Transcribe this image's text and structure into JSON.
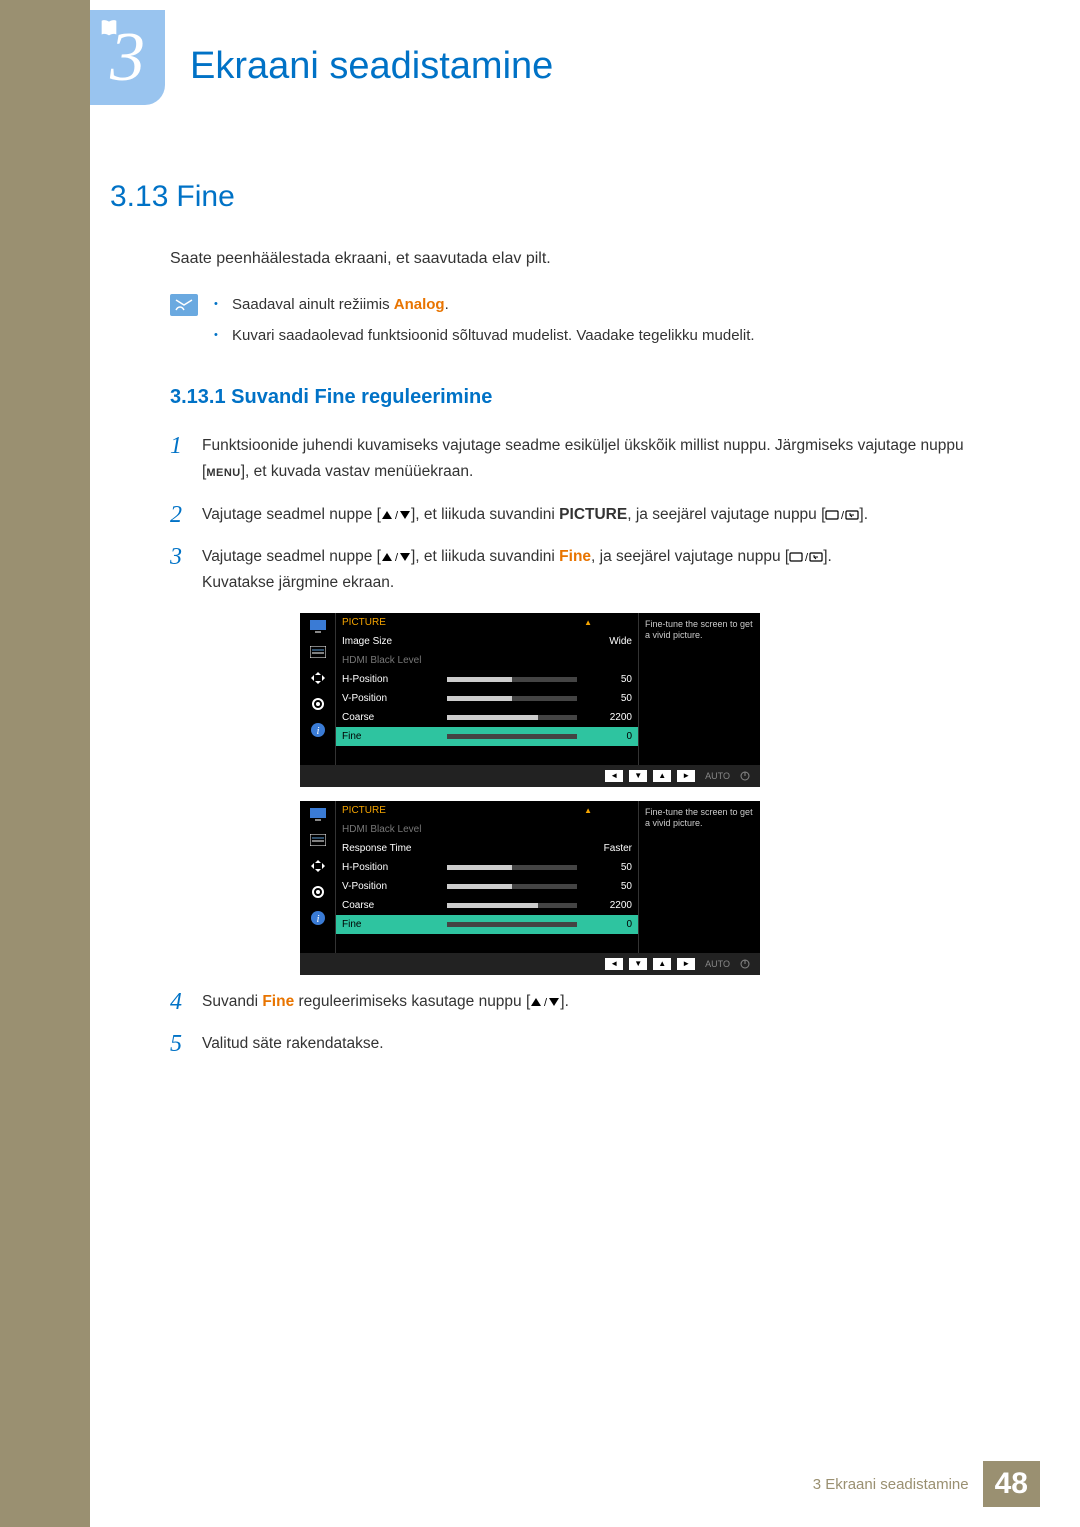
{
  "chapter": {
    "num": "3",
    "title": "Ekraani seadistamine"
  },
  "section": {
    "num": "3.13",
    "title": "Fine"
  },
  "intro": "Saate peenhäälestada ekraani, et saavutada elav pilt.",
  "notes": {
    "b1_pre": "Saadaval ainult režiimis ",
    "b1_em": "Analog",
    "b1_post": ".",
    "b2": "Kuvari saadaolevad funktsioonid sõltuvad mudelist. Vaadake tegelikku mudelit."
  },
  "subsection": "3.13.1  Suvandi Fine reguleerimine",
  "steps": {
    "s1a": "Funktsioonide juhendi kuvamiseks vajutage seadme esiküljel ükskõik millist nuppu. Järgmiseks vajutage nuppu [",
    "s1_menu": "MENU",
    "s1b": "], et kuvada vastav menüüekraan.",
    "s2a": "Vajutage seadmel nuppe [",
    "s2b": "], et liikuda suvandini ",
    "s2_em": "PICTURE",
    "s2c": ", ja seejärel vajutage nuppu [",
    "s2d": "].",
    "s3a": "Vajutage seadmel nuppe [",
    "s3b": "], et liikuda suvandini ",
    "s3_em": "Fine",
    "s3c": ", ja seejärel vajutage nuppu [",
    "s3d": "].",
    "s3e": "Kuvatakse järgmine ekraan.",
    "s4a": "Suvandi ",
    "s4_em": "Fine",
    "s4b": " reguleerimiseks kasutage nuppu [",
    "s4c": "].",
    "s5": "Valitud säte rakendatakse."
  },
  "osd_hint": "Fine-tune the screen to get a vivid picture.",
  "osd_nav_auto": "AUTO",
  "osd1": {
    "title": "PICTURE",
    "rows": [
      {
        "label": "Image Size",
        "val": "Wide",
        "type": "text"
      },
      {
        "label": "HDMI Black Level",
        "val": "",
        "type": "dimmed"
      },
      {
        "label": "H-Position",
        "val": "50",
        "type": "bar",
        "fill": 50
      },
      {
        "label": "V-Position",
        "val": "50",
        "type": "bar",
        "fill": 50
      },
      {
        "label": "Coarse",
        "val": "2200",
        "type": "bar",
        "fill": 70
      },
      {
        "label": "Fine",
        "val": "0",
        "type": "selected",
        "fill": 0
      }
    ]
  },
  "osd2": {
    "title": "PICTURE",
    "rows": [
      {
        "label": "HDMI Black Level",
        "val": "",
        "type": "dimmed"
      },
      {
        "label": "Response Time",
        "val": "Faster",
        "type": "text"
      },
      {
        "label": "H-Position",
        "val": "50",
        "type": "bar",
        "fill": 50
      },
      {
        "label": "V-Position",
        "val": "50",
        "type": "bar",
        "fill": 50
      },
      {
        "label": "Coarse",
        "val": "2200",
        "type": "bar",
        "fill": 70
      },
      {
        "label": "Fine",
        "val": "0",
        "type": "selected",
        "fill": 0
      }
    ]
  },
  "footer": {
    "text": "3 Ekraani seadistamine",
    "page": "48"
  }
}
